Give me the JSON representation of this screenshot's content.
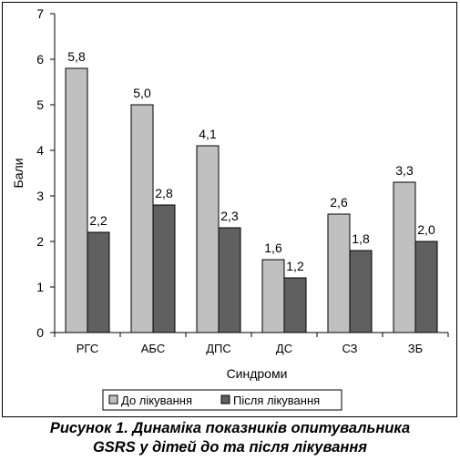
{
  "chart_data": {
    "type": "bar",
    "categories": [
      "РГС",
      "АБС",
      "ДПС",
      "ДС",
      "СЗ",
      "ЗБ"
    ],
    "series": [
      {
        "name": "До лікування",
        "values": [
          5.8,
          5.0,
          4.1,
          1.6,
          2.6,
          3.3
        ],
        "labels": [
          "5,8",
          "5,0",
          "4,1",
          "1,6",
          "2,6",
          "3,3"
        ],
        "color": "#c0c0c0"
      },
      {
        "name": "Після лікування",
        "values": [
          2.2,
          2.8,
          2.3,
          1.2,
          1.8,
          2.0
        ],
        "labels": [
          "2,2",
          "2,8",
          "2,3",
          "1,2",
          "1,8",
          "2,0"
        ],
        "color": "#606060"
      }
    ],
    "xlabel": "Синдроми",
    "ylabel": "Бали",
    "ylim": [
      0,
      7
    ],
    "yticks": [
      "0",
      "1",
      "2",
      "3",
      "4",
      "5",
      "6",
      "7"
    ],
    "grid": false,
    "legend_position": "bottom"
  },
  "caption": {
    "line1": "Рисунок 1. Динаміка показників опитувальника",
    "line2": "GSRS у дітей до та після лікування"
  }
}
